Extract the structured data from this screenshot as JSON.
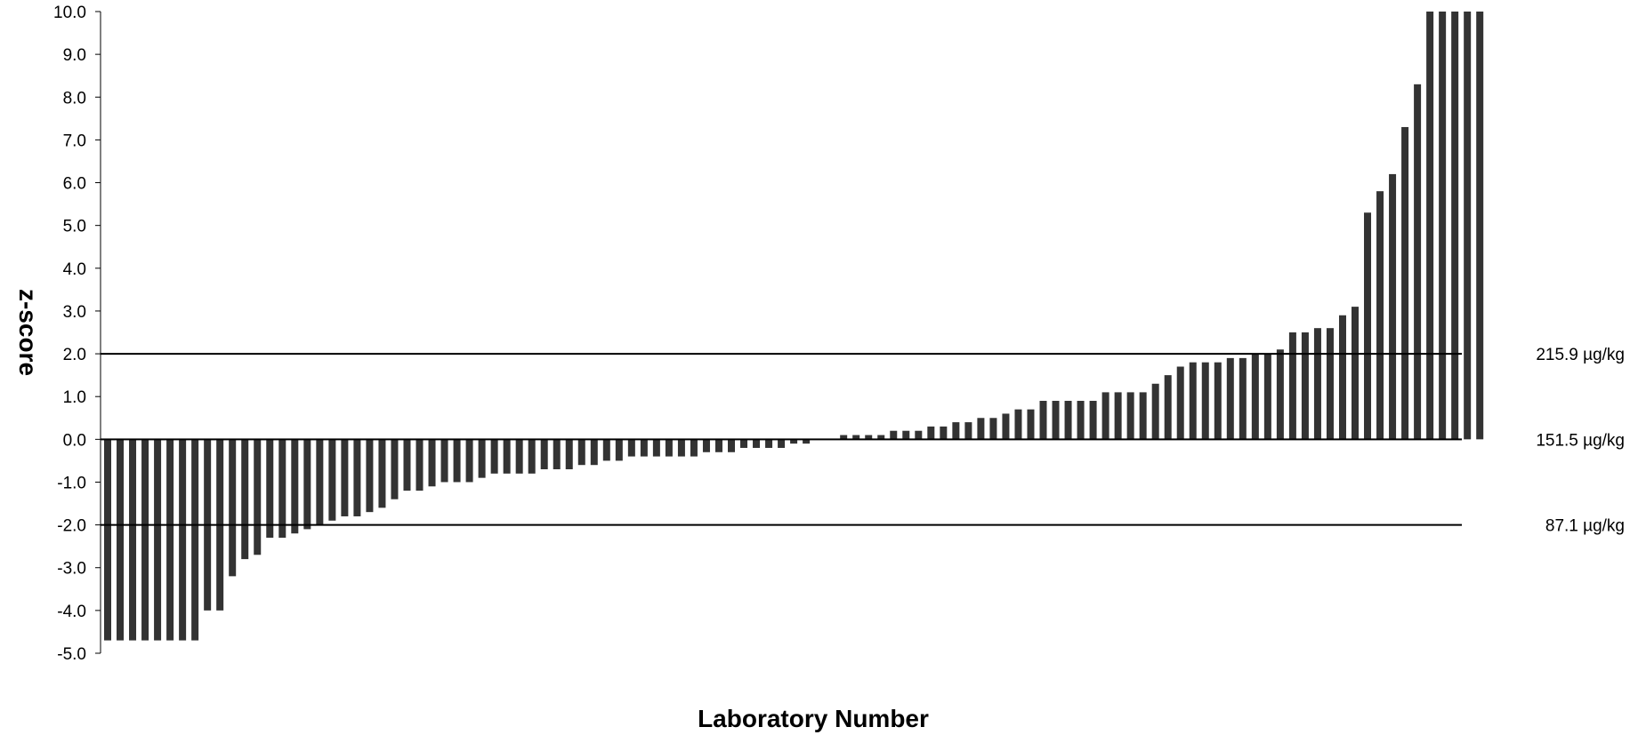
{
  "chart_data": {
    "type": "bar",
    "title": "",
    "xlabel": "Laboratory Number",
    "ylabel": "z-score",
    "ylim": [
      -5,
      10
    ],
    "yticks": [
      "10.0",
      "9.0",
      "8.0",
      "7.0",
      "6.0",
      "5.0",
      "4.0",
      "3.0",
      "2.0",
      "1.0",
      "0.0",
      "-1.0",
      "-2.0",
      "-3.0",
      "-4.0",
      "-5.0"
    ],
    "grid": false,
    "legend": "none",
    "bar_color": "#333333",
    "reference_lines": [
      {
        "y": 2.0,
        "label": "215.9 µg/kg"
      },
      {
        "y": 0.0,
        "label": "151.5 µg/kg"
      },
      {
        "y": -2.0,
        "label": "87.1 µg/kg"
      }
    ],
    "values": [
      -4.7,
      -4.7,
      -4.7,
      -4.7,
      -4.7,
      -4.7,
      -4.7,
      -4.7,
      -4.0,
      -4.0,
      -3.2,
      -2.8,
      -2.7,
      -2.3,
      -2.3,
      -2.2,
      -2.1,
      -2.0,
      -1.9,
      -1.8,
      -1.8,
      -1.7,
      -1.6,
      -1.4,
      -1.2,
      -1.2,
      -1.1,
      -1.0,
      -1.0,
      -1.0,
      -0.9,
      -0.8,
      -0.8,
      -0.8,
      -0.8,
      -0.7,
      -0.7,
      -0.7,
      -0.6,
      -0.6,
      -0.5,
      -0.5,
      -0.4,
      -0.4,
      -0.4,
      -0.4,
      -0.4,
      -0.4,
      -0.3,
      -0.3,
      -0.3,
      -0.2,
      -0.2,
      -0.2,
      -0.2,
      -0.1,
      -0.1,
      0.0,
      0.0,
      0.1,
      0.1,
      0.1,
      0.1,
      0.2,
      0.2,
      0.2,
      0.3,
      0.3,
      0.4,
      0.4,
      0.5,
      0.5,
      0.6,
      0.7,
      0.7,
      0.9,
      0.9,
      0.9,
      0.9,
      0.9,
      1.1,
      1.1,
      1.1,
      1.1,
      1.3,
      1.5,
      1.7,
      1.8,
      1.8,
      1.8,
      1.9,
      1.9,
      2.0,
      2.0,
      2.1,
      2.5,
      2.5,
      2.6,
      2.6,
      2.9,
      3.1,
      5.3,
      5.8,
      6.2,
      7.3,
      8.3,
      10.0,
      10.1,
      10.1,
      10.1,
      10.1
    ]
  }
}
